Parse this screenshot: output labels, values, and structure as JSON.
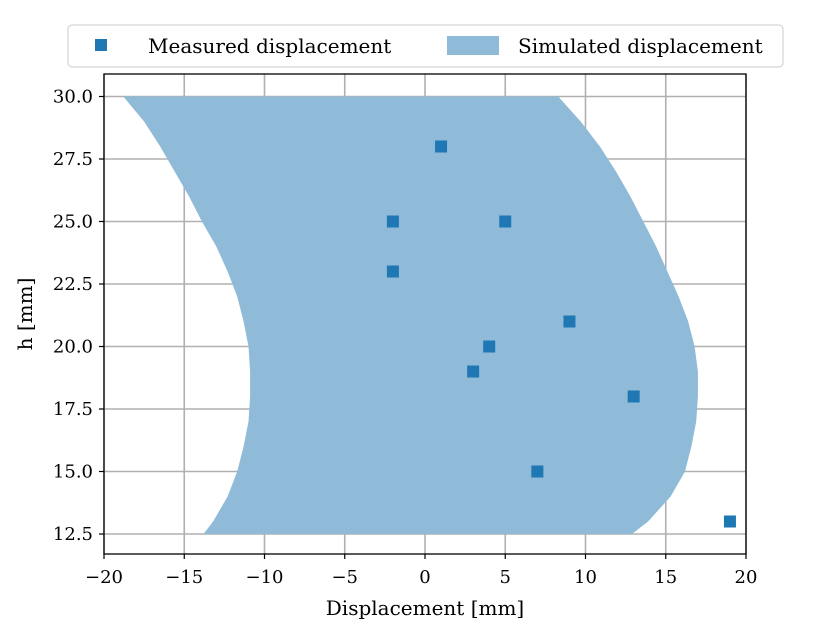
{
  "chart_data": {
    "type": "scatter",
    "xlabel": "Displacement [mm]",
    "ylabel": "h [mm]",
    "xlim": [
      -20,
      20
    ],
    "ylim": [
      11.7,
      30.9
    ],
    "xticks": [
      -20,
      -15,
      -10,
      -5,
      0,
      5,
      10,
      15,
      20
    ],
    "xtick_labels": [
      "−20",
      "−15",
      "−10",
      "−5",
      "0",
      "5",
      "10",
      "15",
      "20"
    ],
    "yticks": [
      12.5,
      15.0,
      17.5,
      20.0,
      22.5,
      25.0,
      27.5,
      30.0
    ],
    "ytick_labels": [
      "12.5",
      "15.0",
      "17.5",
      "20.0",
      "22.5",
      "25.0",
      "27.5",
      "30.0"
    ],
    "grid": true,
    "legend": {
      "position": "top-center, outside plot",
      "entries": [
        "Measured displacement",
        "Simulated displacement"
      ]
    },
    "series": [
      {
        "name": "Measured displacement",
        "kind": "scatter",
        "marker": "square",
        "color": "#1f77b4",
        "points": [
          {
            "x": 1,
            "y": 28
          },
          {
            "x": -2,
            "y": 25
          },
          {
            "x": 5,
            "y": 25
          },
          {
            "x": -2,
            "y": 23
          },
          {
            "x": 9,
            "y": 21
          },
          {
            "x": 4,
            "y": 20
          },
          {
            "x": 3,
            "y": 19
          },
          {
            "x": 13,
            "y": 18
          },
          {
            "x": 7,
            "y": 15
          },
          {
            "x": 19,
            "y": 13
          }
        ]
      },
      {
        "name": "Simulated displacement",
        "kind": "filled-band",
        "color": "#8fbbd9",
        "y": [
          12.5,
          13.0,
          14.0,
          15.0,
          16.0,
          17.0,
          18.0,
          19.0,
          20.0,
          21.0,
          22.0,
          23.0,
          24.0,
          25.0,
          26.0,
          27.0,
          28.0,
          29.0,
          30.0
        ],
        "x_lower": [
          -13.8,
          -13.2,
          -12.3,
          -11.7,
          -11.3,
          -11.0,
          -10.9,
          -10.9,
          -11.0,
          -11.3,
          -11.7,
          -12.3,
          -13.0,
          -13.9,
          -14.7,
          -15.6,
          -16.5,
          -17.5,
          -18.8
        ],
        "x_upper": [
          12.9,
          13.9,
          15.3,
          16.2,
          16.6,
          16.9,
          17.0,
          17.0,
          16.8,
          16.4,
          15.8,
          15.1,
          14.4,
          13.6,
          12.8,
          11.9,
          10.9,
          9.7,
          8.3
        ]
      }
    ]
  }
}
